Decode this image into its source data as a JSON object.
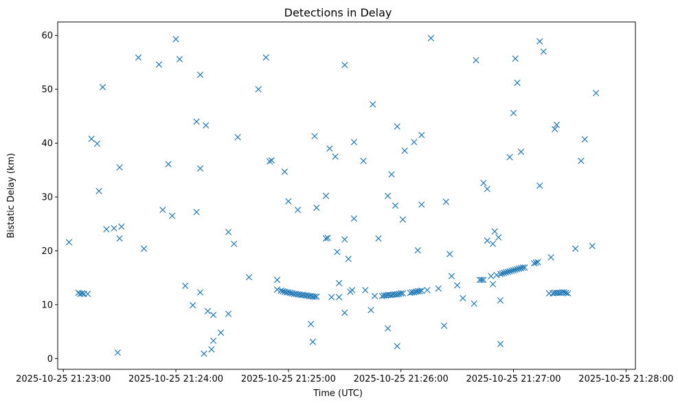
{
  "chart_data": {
    "type": "scatter",
    "title": "Detections in Delay",
    "xlabel": "Time (UTC)",
    "ylabel": "Bistatic Delay (km)",
    "x_unit": "seconds since 2025-10-25 21:23:00",
    "xlim": [
      -3,
      305
    ],
    "ylim": [
      -2.0,
      62.5
    ],
    "x_ticks": [
      {
        "value": 0,
        "label": "2025-10-25 21:23:00"
      },
      {
        "value": 60,
        "label": "2025-10-25 21:24:00"
      },
      {
        "value": 120,
        "label": "2025-10-25 21:25:00"
      },
      {
        "value": 180,
        "label": "2025-10-25 21:26:00"
      },
      {
        "value": 240,
        "label": "2025-10-25 21:27:00"
      },
      {
        "value": 300,
        "label": "2025-10-25 21:28:00"
      }
    ],
    "y_ticks": [
      {
        "value": 0,
        "label": "0"
      },
      {
        "value": 10,
        "label": "10"
      },
      {
        "value": 20,
        "label": "20"
      },
      {
        "value": 30,
        "label": "30"
      },
      {
        "value": 40,
        "label": "40"
      },
      {
        "value": 50,
        "label": "50"
      },
      {
        "value": 60,
        "label": "60"
      }
    ],
    "marker": "x",
    "color": "#1f77b4",
    "points": [
      [
        3,
        21.6
      ],
      [
        8,
        12.2
      ],
      [
        9,
        12.0
      ],
      [
        10,
        12.1
      ],
      [
        11,
        12.0
      ],
      [
        13,
        12.0
      ],
      [
        15,
        40.8
      ],
      [
        18,
        39.9
      ],
      [
        19,
        31.1
      ],
      [
        21,
        50.4
      ],
      [
        23,
        24.0
      ],
      [
        27,
        24.2
      ],
      [
        29,
        1.1
      ],
      [
        30,
        35.5
      ],
      [
        30,
        22.3
      ],
      [
        31,
        24.5
      ],
      [
        40,
        55.9
      ],
      [
        43,
        20.4
      ],
      [
        51,
        54.6
      ],
      [
        53,
        27.6
      ],
      [
        56,
        36.1
      ],
      [
        58,
        26.5
      ],
      [
        60,
        59.3
      ],
      [
        62,
        55.6
      ],
      [
        65,
        13.5
      ],
      [
        69,
        9.9
      ],
      [
        71,
        27.2
      ],
      [
        71,
        44.0
      ],
      [
        73,
        35.3
      ],
      [
        73,
        52.7
      ],
      [
        73,
        12.3
      ],
      [
        75,
        0.9
      ],
      [
        76,
        43.3
      ],
      [
        77,
        8.8
      ],
      [
        79,
        1.7
      ],
      [
        80,
        3.3
      ],
      [
        80,
        8.1
      ],
      [
        84,
        4.8
      ],
      [
        88,
        8.3
      ],
      [
        88,
        23.5
      ],
      [
        91,
        21.3
      ],
      [
        93,
        41.1
      ],
      [
        99,
        15.1
      ],
      [
        104,
        50.0
      ],
      [
        108,
        55.9
      ],
      [
        110,
        36.6
      ],
      [
        111,
        36.8
      ],
      [
        114,
        14.6
      ],
      [
        114,
        12.8
      ],
      [
        116,
        12.6
      ],
      [
        117,
        12.5
      ],
      [
        118,
        12.4
      ],
      [
        119,
        12.3
      ],
      [
        120,
        12.3
      ],
      [
        121,
        12.2
      ],
      [
        122,
        12.1
      ],
      [
        123,
        12.0
      ],
      [
        124,
        12.0
      ],
      [
        125,
        11.9
      ],
      [
        126,
        11.9
      ],
      [
        127,
        11.8
      ],
      [
        128,
        11.8
      ],
      [
        129,
        11.7
      ],
      [
        130,
        11.7
      ],
      [
        131,
        11.6
      ],
      [
        132,
        11.6
      ],
      [
        133,
        11.5
      ],
      [
        134,
        11.5
      ],
      [
        135,
        11.5
      ],
      [
        118,
        34.7
      ],
      [
        120,
        29.2
      ],
      [
        125,
        27.6
      ],
      [
        132,
        6.4
      ],
      [
        133,
        3.1
      ],
      [
        134,
        41.3
      ],
      [
        135,
        28.0
      ],
      [
        140,
        30.2
      ],
      [
        140,
        22.3
      ],
      [
        141,
        22.4
      ],
      [
        142,
        39.0
      ],
      [
        143,
        11.4
      ],
      [
        145,
        37.5
      ],
      [
        146,
        19.8
      ],
      [
        147,
        11.4
      ],
      [
        147,
        14.0
      ],
      [
        150,
        22.1
      ],
      [
        150,
        8.5
      ],
      [
        150,
        54.5
      ],
      [
        152,
        18.5
      ],
      [
        153,
        12.4
      ],
      [
        154,
        12.7
      ],
      [
        155,
        26.0
      ],
      [
        155,
        40.2
      ],
      [
        160,
        36.7
      ],
      [
        161,
        12.7
      ],
      [
        164,
        9.0
      ],
      [
        165,
        47.2
      ],
      [
        166,
        11.6
      ],
      [
        168,
        22.3
      ],
      [
        170,
        11.6
      ],
      [
        171,
        11.7
      ],
      [
        172,
        11.7
      ],
      [
        173,
        5.6
      ],
      [
        173,
        30.2
      ],
      [
        173,
        11.8
      ],
      [
        174,
        11.8
      ],
      [
        175,
        11.8
      ],
      [
        175,
        34.2
      ],
      [
        176,
        11.9
      ],
      [
        177,
        11.9
      ],
      [
        177,
        28.4
      ],
      [
        178,
        11.9
      ],
      [
        178,
        2.3
      ],
      [
        178,
        43.1
      ],
      [
        179,
        12.0
      ],
      [
        180,
        12.1
      ],
      [
        181,
        12.1
      ],
      [
        181,
        25.8
      ],
      [
        182,
        38.6
      ],
      [
        185,
        12.2
      ],
      [
        186,
        12.3
      ],
      [
        187,
        12.3
      ],
      [
        187,
        40.2
      ],
      [
        188,
        12.4
      ],
      [
        189,
        12.5
      ],
      [
        189,
        20.1
      ],
      [
        190,
        12.5
      ],
      [
        191,
        12.6
      ],
      [
        191,
        28.6
      ],
      [
        191,
        41.5
      ],
      [
        194,
        12.7
      ],
      [
        196,
        59.5
      ],
      [
        200,
        13.0
      ],
      [
        203,
        6.1
      ],
      [
        204,
        29.1
      ],
      [
        206,
        19.4
      ],
      [
        207,
        15.3
      ],
      [
        210,
        13.6
      ],
      [
        213,
        11.2
      ],
      [
        219,
        10.2
      ],
      [
        220,
        55.4
      ],
      [
        222,
        14.6
      ],
      [
        223,
        14.6
      ],
      [
        224,
        32.6
      ],
      [
        224,
        14.6
      ],
      [
        226,
        31.5
      ],
      [
        226,
        21.9
      ],
      [
        228,
        15.3
      ],
      [
        229,
        13.8
      ],
      [
        229,
        21.3
      ],
      [
        230,
        23.6
      ],
      [
        231,
        15.5
      ],
      [
        232,
        22.5
      ],
      [
        233,
        15.7
      ],
      [
        233,
        10.8
      ],
      [
        233,
        2.7
      ],
      [
        234,
        15.8
      ],
      [
        235,
        15.9
      ],
      [
        236,
        16.0
      ],
      [
        237,
        16.1
      ],
      [
        238,
        37.4
      ],
      [
        238,
        16.2
      ],
      [
        239,
        16.3
      ],
      [
        240,
        45.6
      ],
      [
        240,
        16.4
      ],
      [
        241,
        16.5
      ],
      [
        241,
        55.7
      ],
      [
        242,
        16.6
      ],
      [
        242,
        51.2
      ],
      [
        243,
        16.7
      ],
      [
        244,
        16.8
      ],
      [
        244,
        38.4
      ],
      [
        245,
        16.9
      ],
      [
        246,
        16.9
      ],
      [
        251,
        17.7
      ],
      [
        252,
        17.8
      ],
      [
        253,
        17.9
      ],
      [
        254,
        32.1
      ],
      [
        254,
        58.9
      ],
      [
        256,
        57.0
      ],
      [
        259,
        12.1
      ],
      [
        260,
        18.8
      ],
      [
        261,
        12.1
      ],
      [
        262,
        12.2
      ],
      [
        262,
        42.6
      ],
      [
        263,
        12.2
      ],
      [
        263,
        43.4
      ],
      [
        264,
        12.2
      ],
      [
        265,
        12.2
      ],
      [
        266,
        12.3
      ],
      [
        267,
        12.3
      ],
      [
        268,
        12.2
      ],
      [
        269,
        12.1
      ],
      [
        273,
        20.4
      ],
      [
        276,
        36.7
      ],
      [
        278,
        40.7
      ],
      [
        282,
        20.9
      ],
      [
        284,
        49.3
      ]
    ]
  }
}
